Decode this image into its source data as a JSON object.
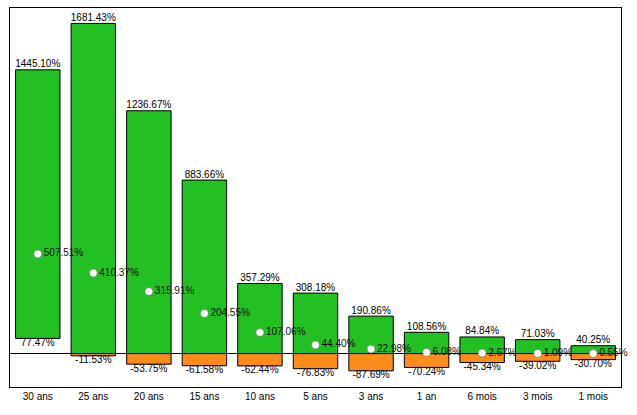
{
  "chart_data": {
    "type": "bar",
    "categories": [
      "30 ans",
      "25 ans",
      "20 ans",
      "15 ans",
      "10 ans",
      "5 ans",
      "3 ans",
      "1 an",
      "6 mois",
      "3 mois",
      "1 mois"
    ],
    "series": [
      {
        "color": "#22c022",
        "values": [
          1445.1,
          1681.43,
          1236.67,
          883.66,
          357.29,
          308.18,
          190.86,
          108.56,
          84.84,
          71.03,
          40.25
        ],
        "value_labels": [
          "1445.10%",
          "1681.43%",
          "1236.67%",
          "883.66%",
          "357.29%",
          "308.18%",
          "190.86%",
          "108.56%",
          "84.84%",
          "71.03%",
          "40.25%"
        ]
      },
      {
        "color": "#ff8c1a",
        "values": [
          77.47,
          -11.53,
          -53.75,
          -61.58,
          -62.44,
          -76.83,
          -87.69,
          -70.24,
          -45.34,
          -39.02,
          -30.7
        ],
        "value_labels": [
          "77.47%",
          "-11.53%",
          "-53.75%",
          "-61.58%",
          "-62.44%",
          "-76.83%",
          "-87.69%",
          "-70.24%",
          "-45.34%",
          "-39.02%",
          "-30.70%"
        ]
      },
      {
        "type": "scatter",
        "marker": "circle",
        "color": "#ffffff",
        "values": [
          507.51,
          410.37,
          315.91,
          204.55,
          107.06,
          44.4,
          22.98,
          6.08,
          2.67,
          1.09,
          0.55
        ],
        "value_labels": [
          "507.51%",
          "410.37%",
          "315.91%",
          "204.55%",
          "107.06%",
          "44.40%",
          "22.98%",
          "6.08%",
          "2.67%",
          "1.09%",
          "0.55%"
        ]
      }
    ],
    "ylim": [
      -170,
      1760
    ],
    "tick_labels": "x",
    "data_labels": true,
    "grid": false
  }
}
